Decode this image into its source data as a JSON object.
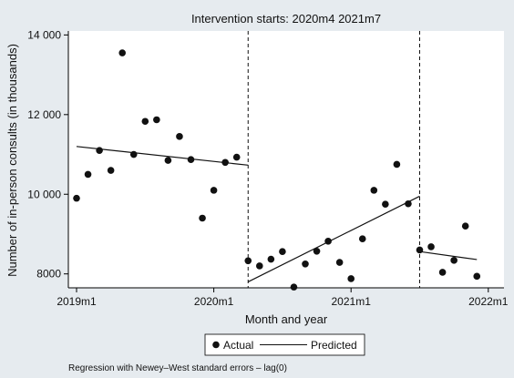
{
  "chart_data": {
    "type": "scatter",
    "title": "Intervention starts: 2020m4 2021m7",
    "xlabel": "Month and year",
    "ylabel": "Number of in-person consults (in thousands)",
    "x_ticks": [
      {
        "label": "2019m1",
        "month_index": 0
      },
      {
        "label": "2020m1",
        "month_index": 12
      },
      {
        "label": "2021m1",
        "month_index": 24
      },
      {
        "label": "2022m1",
        "month_index": 36
      }
    ],
    "y_ticks": [
      {
        "label": "8000",
        "value": 8000
      },
      {
        "label": "10 000",
        "value": 10000
      },
      {
        "label": "12 000",
        "value": 12000
      },
      {
        "label": "14 000",
        "value": 14000
      }
    ],
    "xlim": [
      "2019m1",
      "2022m1"
    ],
    "ylim": [
      7650,
      14100
    ],
    "interventions": [
      "2020m4",
      "2021m7"
    ],
    "series": [
      {
        "name": "Actual",
        "kind": "points",
        "x": [
          "2019m1",
          "2019m2",
          "2019m3",
          "2019m4",
          "2019m5",
          "2019m6",
          "2019m7",
          "2019m8",
          "2019m9",
          "2019m10",
          "2019m11",
          "2019m12",
          "2020m1",
          "2020m2",
          "2020m3",
          "2020m4",
          "2020m5",
          "2020m6",
          "2020m7",
          "2020m8",
          "2020m9",
          "2020m10",
          "2020m11",
          "2020m12",
          "2021m1",
          "2021m2",
          "2021m3",
          "2021m4",
          "2021m5",
          "2021m6",
          "2021m7",
          "2021m8",
          "2021m9",
          "2021m10",
          "2021m11",
          "2021m12"
        ],
        "y": [
          9900,
          10500,
          11100,
          10600,
          13550,
          11000,
          11830,
          11870,
          10850,
          11450,
          10870,
          9400,
          10100,
          10800,
          10930,
          8330,
          8200,
          8370,
          8560,
          7670,
          8250,
          8570,
          8820,
          8290,
          7880,
          8880,
          10100,
          9750,
          10750,
          9760,
          8600,
          8680,
          8040,
          8340,
          9200,
          7940
        ]
      },
      {
        "name": "Predicted",
        "kind": "segments",
        "segments": [
          {
            "x": [
              "2019m1",
              "2020m4"
            ],
            "y": [
              11200,
              10730
            ]
          },
          {
            "x": [
              "2020m4",
              "2021m7"
            ],
            "y": [
              7800,
              9950
            ]
          },
          {
            "x": [
              "2021m7",
              "2021m12"
            ],
            "y": [
              8560,
              8360
            ]
          }
        ]
      }
    ],
    "legend": {
      "position": "bottom",
      "entries": [
        "Actual",
        "Predicted"
      ]
    },
    "grid": false,
    "note": "Regression with Newey–West standard errors – lag(0)"
  }
}
